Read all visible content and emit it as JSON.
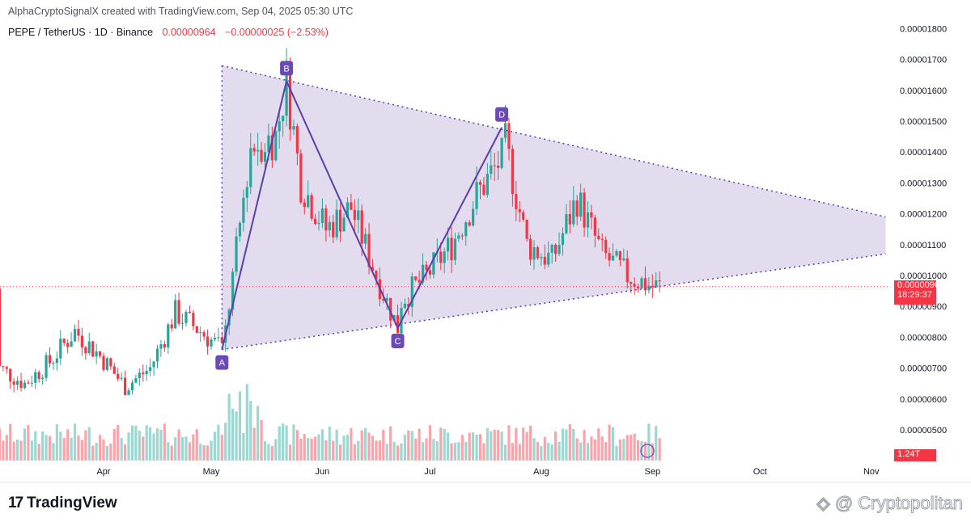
{
  "header": {
    "attribution": "AlphaCryptoSignalX created with TradingView.com, Sep 04, 2025 05:30 UTC",
    "symbol": "PEPE / TetherUS · 1D · Binance",
    "last_price": "0.00000964",
    "change": "−0.00000025 (−2.53%)"
  },
  "price_badge": {
    "price": "0.00000964",
    "countdown": "18:29:37"
  },
  "volume_badge": "1.24T",
  "footer": {
    "logo_text": "TradingView",
    "watermark": "@ Cryptopolitan"
  },
  "colors": {
    "up": "#26a69a",
    "down": "#f23645",
    "pattern_fill": "#d9cfe8",
    "pattern_line": "#5b3fa8",
    "label_bg": "#6a4bb5"
  },
  "chart_data": {
    "type": "candlestick",
    "symbol": "PEPE/USDT",
    "interval": "1D",
    "yaxis_ticks": [
      "0.00000500",
      "0.00000600",
      "0.00000700",
      "0.00000800",
      "0.00000900",
      "0.00001000",
      "0.00001100",
      "0.00001200",
      "0.00001300",
      "0.00001400",
      "0.00001500",
      "0.00001600",
      "0.00001700",
      "0.00001800"
    ],
    "ylim": [
      4.5e-06,
      1.83e-05
    ],
    "xaxis_ticks": [
      "Apr",
      "May",
      "Jun",
      "Jul",
      "Aug",
      "Sep",
      "Oct",
      "Nov"
    ],
    "current_price": 9.64e-06,
    "pattern": {
      "type": "symmetrical triangle (ABCD)",
      "points": [
        {
          "label": "A",
          "date": "2025-05-04",
          "price": 7.6e-06
        },
        {
          "label": "B",
          "date": "2025-05-22",
          "price": 1.63e-05
        },
        {
          "label": "C",
          "date": "2025-06-22",
          "price": 8.3e-06
        },
        {
          "label": "D",
          "date": "2025-07-21",
          "price": 1.48e-05
        }
      ],
      "upper_line": [
        {
          "date": "2025-05-04",
          "price": 1.68e-05
        },
        {
          "date": "2025-11-05",
          "price": 1.19e-05
        }
      ],
      "lower_line": [
        {
          "date": "2025-05-04",
          "price": 7.6e-06
        },
        {
          "date": "2025-11-05",
          "price": 1.07e-05
        }
      ]
    },
    "closes_approx": [
      {
        "date": "2025-03-03",
        "close": 7e-06
      },
      {
        "date": "2025-03-10",
        "close": 6.5e-06
      },
      {
        "date": "2025-03-17",
        "close": 7.2e-06
      },
      {
        "date": "2025-03-24",
        "close": 8.2e-06
      },
      {
        "date": "2025-03-31",
        "close": 7.4e-06
      },
      {
        "date": "2025-04-07",
        "close": 6.4e-06
      },
      {
        "date": "2025-04-14",
        "close": 7e-06
      },
      {
        "date": "2025-04-21",
        "close": 8.8e-06
      },
      {
        "date": "2025-04-28",
        "close": 8.2e-06
      },
      {
        "date": "2025-05-05",
        "close": 8.2e-06
      },
      {
        "date": "2025-05-12",
        "close": 1.42e-05
      },
      {
        "date": "2025-05-19",
        "close": 1.45e-05
      },
      {
        "date": "2025-05-26",
        "close": 1.3e-05
      },
      {
        "date": "2025-06-02",
        "close": 1.15e-05
      },
      {
        "date": "2025-06-09",
        "close": 1.22e-05
      },
      {
        "date": "2025-06-16",
        "close": 1e-05
      },
      {
        "date": "2025-06-23",
        "close": 9.2e-06
      },
      {
        "date": "2025-06-30",
        "close": 1e-05
      },
      {
        "date": "2025-07-07",
        "close": 1.1e-05
      },
      {
        "date": "2025-07-14",
        "close": 1.26e-05
      },
      {
        "date": "2025-07-21",
        "close": 1.38e-05
      },
      {
        "date": "2025-07-28",
        "close": 1.1e-05
      },
      {
        "date": "2025-08-04",
        "close": 1.05e-05
      },
      {
        "date": "2025-08-11",
        "close": 1.25e-05
      },
      {
        "date": "2025-08-18",
        "close": 1.07e-05
      },
      {
        "date": "2025-08-25",
        "close": 1e-05
      },
      {
        "date": "2025-09-01",
        "close": 9.64e-06
      }
    ]
  }
}
